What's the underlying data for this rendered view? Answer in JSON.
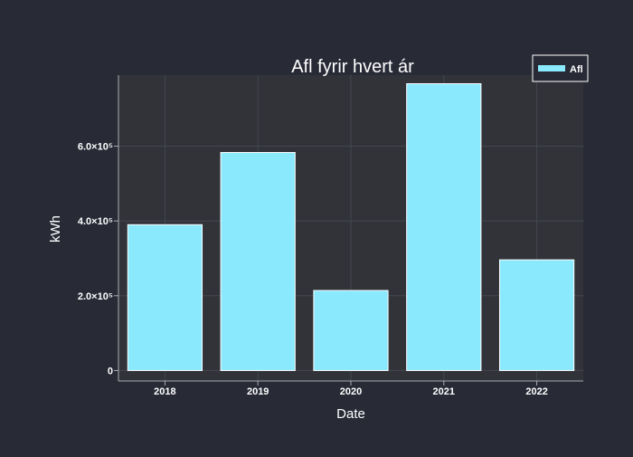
{
  "colors": {
    "paper_bg": "#282a36",
    "plot_bg": "#313339",
    "bar_fill": "#8be9fd",
    "bar_edge": "#ffffff",
    "text": "#ffffff",
    "grid": "#45474f",
    "axis_line": "#a9abb0"
  },
  "chart_data": {
    "type": "bar",
    "title": "Afl fyrir hvert ár",
    "xlabel": "Date",
    "ylabel": "kWh",
    "categories": [
      "2018",
      "2019",
      "2020",
      "2021",
      "2022"
    ],
    "series": [
      {
        "name": "Afl",
        "values": [
          390000,
          583000,
          214000,
          767000,
          296000
        ]
      }
    ],
    "ylim": [
      -28000,
      790000
    ],
    "yticks": [
      {
        "value": 0,
        "label": "0"
      },
      {
        "value": 200000,
        "label": "2.0×10⁵"
      },
      {
        "value": 400000,
        "label": "4.0×10⁵"
      },
      {
        "value": 600000,
        "label": "6.0×10⁵"
      }
    ],
    "grid": true,
    "legend_position": "top-right"
  }
}
